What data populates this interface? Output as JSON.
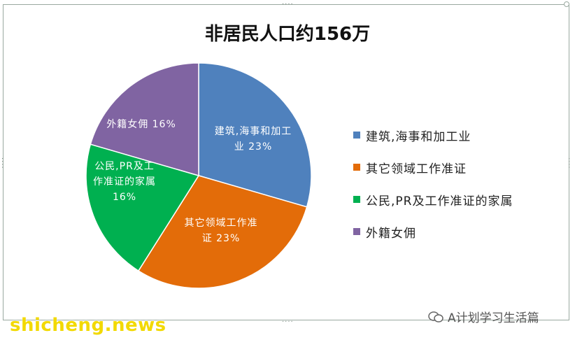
{
  "chart_data": {
    "type": "pie",
    "title": "非居民人口约156万",
    "slices": [
      {
        "label": "建筑,海事和加工业",
        "value": 23,
        "pie_label_lines": [
          "建筑,海事和加工",
          "业 23%"
        ],
        "color": "#4F81BD"
      },
      {
        "label": "其它领域工作准证",
        "value": 23,
        "pie_label_lines": [
          "其它领域工作准",
          "证 23%"
        ],
        "color": "#E36C09"
      },
      {
        "label": "公民,PR及工作准证的家属",
        "value": 16,
        "pie_label_lines": [
          "公民,PR及工",
          "作准证的家属",
          "16%"
        ],
        "color": "#00B050"
      },
      {
        "label": "外籍女佣",
        "value": 16,
        "pie_label_lines": [
          "外籍女佣 16%"
        ],
        "color": "#8064A2"
      }
    ],
    "legend_position": "right"
  },
  "watermarks": {
    "site": "shicheng.news",
    "account": "A计划学习生活篇"
  }
}
